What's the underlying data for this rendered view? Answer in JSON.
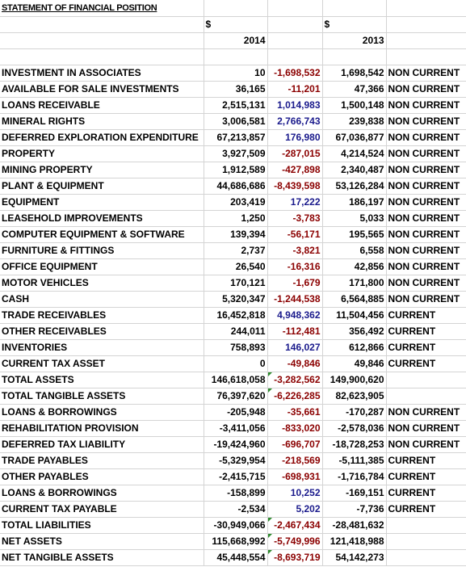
{
  "sheet": {
    "title": "STATEMENT OF FINANCIAL POSITION",
    "currency_2014": "$",
    "currency_2013": "$",
    "year_2014": "2014",
    "year_2013": "2013",
    "rows": [
      {
        "label": "INVESTMENT IN ASSOCIATES",
        "v2014": "10",
        "diff": "-1,698,532",
        "diff_sign": "neg",
        "v2013": "1,698,542",
        "cls": "NON CURRENT"
      },
      {
        "label": "AVAILABLE FOR SALE INVESTMENTS",
        "v2014": "36,165",
        "diff": "-11,201",
        "diff_sign": "neg",
        "v2013": "47,366",
        "cls": "NON CURRENT"
      },
      {
        "label": "LOANS RECEIVABLE",
        "v2014": "2,515,131",
        "diff": "1,014,983",
        "diff_sign": "pos",
        "v2013": "1,500,148",
        "cls": "NON CURRENT"
      },
      {
        "label": "MINERAL RIGHTS",
        "v2014": "3,006,581",
        "diff": "2,766,743",
        "diff_sign": "pos",
        "v2013": "239,838",
        "cls": "NON CURRENT"
      },
      {
        "label": "DEFERRED EXPLORATION EXPENDITURE",
        "v2014": "67,213,857",
        "diff": "176,980",
        "diff_sign": "pos",
        "v2013": "67,036,877",
        "cls": "NON CURRENT"
      },
      {
        "label": "PROPERTY",
        "v2014": "3,927,509",
        "diff": "-287,015",
        "diff_sign": "neg",
        "v2013": "4,214,524",
        "cls": "NON CURRENT"
      },
      {
        "label": "MINING PROPERTY",
        "v2014": "1,912,589",
        "diff": "-427,898",
        "diff_sign": "neg",
        "v2013": "2,340,487",
        "cls": "NON CURRENT"
      },
      {
        "label": "PLANT & EQUIPMENT",
        "v2014": "44,686,686",
        "diff": "-8,439,598",
        "diff_sign": "neg",
        "v2013": "53,126,284",
        "cls": "NON CURRENT"
      },
      {
        "label": "EQUIPMENT",
        "v2014": "203,419",
        "diff": "17,222",
        "diff_sign": "pos",
        "v2013": "186,197",
        "cls": "NON CURRENT"
      },
      {
        "label": "LEASEHOLD IMPROVEMENTS",
        "v2014": "1,250",
        "diff": "-3,783",
        "diff_sign": "neg",
        "v2013": "5,033",
        "cls": "NON CURRENT"
      },
      {
        "label": "COMPUTER EQUIPMENT & SOFTWARE",
        "v2014": "139,394",
        "diff": "-56,171",
        "diff_sign": "neg",
        "v2013": "195,565",
        "cls": "NON CURRENT"
      },
      {
        "label": "FURNITURE & FITTINGS",
        "v2014": "2,737",
        "diff": "-3,821",
        "diff_sign": "neg",
        "v2013": "6,558",
        "cls": "NON CURRENT"
      },
      {
        "label": "OFFICE EQUIPMENT",
        "v2014": "26,540",
        "diff": "-16,316",
        "diff_sign": "neg",
        "v2013": "42,856",
        "cls": "NON CURRENT"
      },
      {
        "label": "MOTOR VEHICLES",
        "v2014": "170,121",
        "diff": "-1,679",
        "diff_sign": "neg",
        "v2013": "171,800",
        "cls": "NON CURRENT"
      },
      {
        "label": "CASH",
        "v2014": "5,320,347",
        "diff": "-1,244,538",
        "diff_sign": "neg",
        "v2013": "6,564,885",
        "cls": "NON CURRENT"
      },
      {
        "label": "TRADE RECEIVABLES",
        "v2014": "16,452,818",
        "diff": "4,948,362",
        "diff_sign": "pos",
        "v2013": "11,504,456",
        "cls": "CURRENT"
      },
      {
        "label": "OTHER RECEIVABLES",
        "v2014": "244,011",
        "diff": "-112,481",
        "diff_sign": "neg",
        "v2013": "356,492",
        "cls": "CURRENT"
      },
      {
        "label": "INVENTORIES",
        "v2014": "758,893",
        "diff": "146,027",
        "diff_sign": "pos",
        "v2013": "612,866",
        "cls": "CURRENT"
      },
      {
        "label": "CURRENT TAX ASSET",
        "v2014": "0",
        "diff": "-49,846",
        "diff_sign": "neg",
        "v2013": "49,846",
        "cls": "CURRENT"
      },
      {
        "label": "TOTAL ASSETS",
        "v2014": "146,618,058",
        "diff": "-3,282,562",
        "diff_sign": "neg",
        "v2013": "149,900,620",
        "cls": "",
        "flag": true
      },
      {
        "label": "TOTAL TANGIBLE ASSETS",
        "v2014": "76,397,620",
        "diff": "-6,226,285",
        "diff_sign": "neg",
        "v2013": "82,623,905",
        "cls": "",
        "flag": true
      },
      {
        "label": "LOANS & BORROWINGS",
        "v2014": "-205,948",
        "diff": "-35,661",
        "diff_sign": "neg",
        "v2013": "-170,287",
        "cls": "NON CURRENT"
      },
      {
        "label": "REHABILITATION PROVISION",
        "v2014": "-3,411,056",
        "diff": "-833,020",
        "diff_sign": "neg",
        "v2013": "-2,578,036",
        "cls": "NON CURRENT"
      },
      {
        "label": "DEFERRED TAX LIABILITY",
        "v2014": "-19,424,960",
        "diff": "-696,707",
        "diff_sign": "neg",
        "v2013": "-18,728,253",
        "cls": "NON CURRENT"
      },
      {
        "label": "TRADE PAYABLES",
        "v2014": "-5,329,954",
        "diff": "-218,569",
        "diff_sign": "neg",
        "v2013": "-5,111,385",
        "cls": "CURRENT"
      },
      {
        "label": "OTHER PAYABLES",
        "v2014": "-2,415,715",
        "diff": "-698,931",
        "diff_sign": "neg",
        "v2013": "-1,716,784",
        "cls": "CURRENT"
      },
      {
        "label": "LOANS & BORROWINGS",
        "v2014": "-158,899",
        "diff": "10,252",
        "diff_sign": "pos",
        "v2013": "-169,151",
        "cls": "CURRENT"
      },
      {
        "label": "CURRENT TAX PAYABLE",
        "v2014": "-2,534",
        "diff": "5,202",
        "diff_sign": "pos",
        "v2013": "-7,736",
        "cls": "CURRENT"
      },
      {
        "label": "TOTAL LIABILITIES",
        "v2014": "-30,949,066",
        "diff": "-2,467,434",
        "diff_sign": "neg",
        "v2013": "-28,481,632",
        "cls": "",
        "flag": true
      },
      {
        "label": "NET ASSETS",
        "v2014": "115,668,992",
        "diff": "-5,749,996",
        "diff_sign": "neg",
        "v2013": "121,418,988",
        "cls": "",
        "flag": true
      },
      {
        "label": "NET TANGIBLE ASSETS",
        "v2014": "45,448,554",
        "diff": "-8,693,719",
        "diff_sign": "neg",
        "v2013": "54,142,273",
        "cls": "",
        "flag": true
      }
    ]
  },
  "colors": {
    "positive_diff": "#1a1a8c",
    "negative_diff": "#8b0000",
    "error_flag": "#2e8b2e"
  }
}
